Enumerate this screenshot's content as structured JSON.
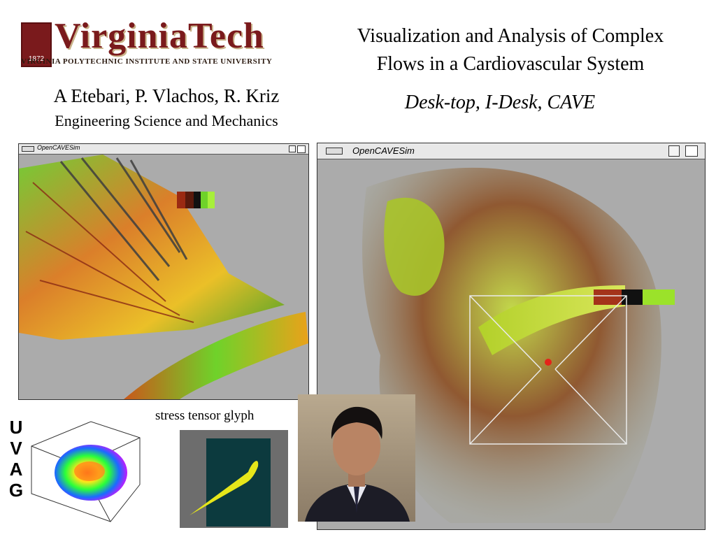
{
  "logo": {
    "wordmark": "VirginiaTech",
    "year": "1872",
    "subtitle": "VIRGINIA POLYTECHNIC INSTITUTE AND STATE UNIVERSITY"
  },
  "title": {
    "line1": "Visualization and Analysis of Complex",
    "line2": "Flows in a Cardiovascular System"
  },
  "subtitle": "Desk-top, I-Desk, CAVE",
  "authors": "A Etebari, P. Vlachos, R. Kriz",
  "department": "Engineering Science and Mechanics",
  "windows": {
    "left_title": "OpenCAVESim",
    "right_title": "OpenCAVESim"
  },
  "uvag": [
    "U",
    "V",
    "A",
    "G"
  ],
  "glyph_label": "stress tensor glyph",
  "colors": {
    "brand": "#7a1a1c",
    "window_bg": "#ababab"
  }
}
